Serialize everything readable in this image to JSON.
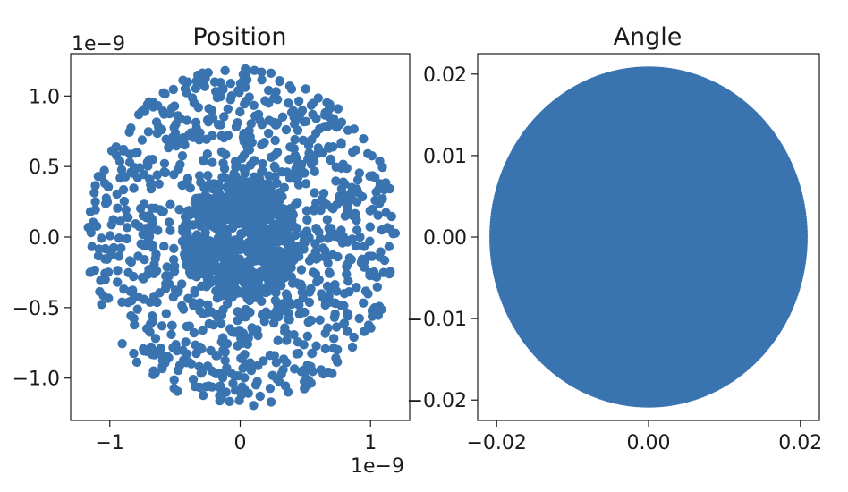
{
  "colors": {
    "points": "#3a74b0",
    "axes": "#1a1a1a",
    "background": "#ffffff"
  },
  "chart_data": [
    {
      "type": "scatter",
      "title": "Position",
      "xlabel": "",
      "ylabel": "",
      "xlim": [
        -1.3,
        1.3
      ],
      "ylim": [
        -1.3,
        1.3
      ],
      "x_ticks": [
        -1,
        0,
        1
      ],
      "x_tick_labels": [
        "−1",
        "0",
        "1"
      ],
      "y_ticks": [
        -1.0,
        -0.5,
        0.0,
        0.5,
        1.0
      ],
      "y_tick_labels": [
        "−1.0",
        "−0.5",
        "0.0",
        "0.5",
        "1.0"
      ],
      "x_offset_label": "1e−9",
      "y_offset_label": "1e−9",
      "grid": false,
      "distribution": {
        "shape": "disk",
        "center": [
          0,
          0
        ],
        "radius": 1.2,
        "dense_core_radius": 0.45,
        "point_count": 1600
      }
    },
    {
      "type": "scatter",
      "title": "Angle",
      "xlabel": "",
      "ylabel": "",
      "xlim": [
        -0.0225,
        0.0225
      ],
      "ylim": [
        -0.0225,
        0.0225
      ],
      "x_ticks": [
        -0.02,
        0.0,
        0.02
      ],
      "x_tick_labels": [
        "−0.02",
        "0.00",
        "0.02"
      ],
      "y_ticks": [
        -0.02,
        -0.01,
        0.0,
        0.01,
        0.02
      ],
      "y_tick_labels": [
        "−0.02",
        "−0.01",
        "0.00",
        "0.01",
        "0.02"
      ],
      "grid": false,
      "distribution": {
        "shape": "filled-disk",
        "center": [
          0,
          0
        ],
        "radius": 0.0205
      }
    }
  ]
}
